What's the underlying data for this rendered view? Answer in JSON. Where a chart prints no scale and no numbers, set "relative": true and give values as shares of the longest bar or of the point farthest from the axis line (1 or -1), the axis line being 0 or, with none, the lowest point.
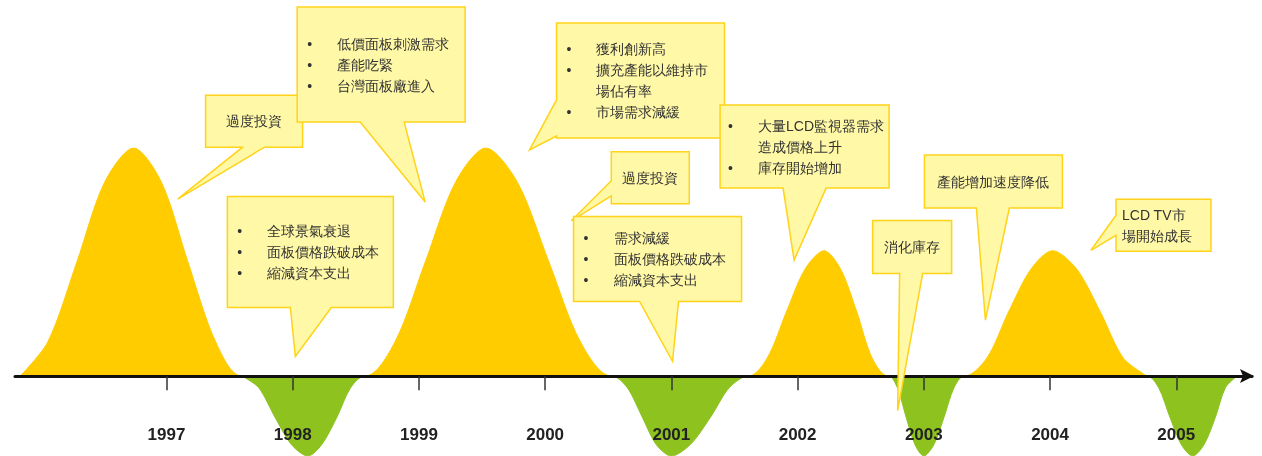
{
  "chart_data": {
    "type": "area",
    "relative": true,
    "marker": "none",
    "xlim": [
      1995.8,
      2005.6
    ],
    "xticks": [
      1997,
      1998,
      1999,
      2000,
      2001,
      2002,
      2003,
      2004,
      2005
    ],
    "series": [
      {
        "color": "#ffcc00",
        "x": [
          1995.84,
          1996.06,
          1996.29,
          1996.51,
          1996.74,
          1996.96,
          1997.17,
          1997.39,
          1997.6,
          1998.57,
          1998.81,
          1999.05,
          1999.29,
          1999.53,
          1999.78,
          2000.03,
          2000.28,
          2000.53,
          2001.61,
          2001.76,
          2001.91,
          2002.06,
          2002.21,
          2002.34,
          2002.47,
          2002.59,
          2002.72,
          2003.32,
          2003.5,
          2003.67,
          2003.85,
          2004.02,
          2004.21,
          2004.4,
          2004.58,
          2004.77
        ],
        "values": [
          0,
          0.15,
          0.5,
          0.85,
          1,
          0.85,
          0.5,
          0.15,
          0,
          0,
          0.15,
          0.5,
          0.85,
          1,
          0.85,
          0.5,
          0.15,
          0,
          0,
          0.08,
          0.28,
          0.47,
          0.55,
          0.47,
          0.28,
          0.08,
          0,
          0,
          0.08,
          0.28,
          0.47,
          0.55,
          0.47,
          0.28,
          0.08,
          0
        ]
      },
      {
        "color": "#8dc21f",
        "x": [
          1997.6,
          1997.73,
          1997.86,
          1997.99,
          1998.12,
          1998.23,
          1998.35,
          1998.46,
          1998.57,
          2000.53,
          2000.65,
          2000.77,
          2000.88,
          2001.0,
          2001.15,
          2001.31,
          2001.46,
          2001.61,
          2002.72,
          2002.79,
          2002.86,
          2002.93,
          2003.0,
          2003.08,
          2003.16,
          2003.24,
          2003.32,
          2004.77,
          2004.86,
          2004.95,
          2005.04,
          2005.13,
          2005.22,
          2005.31,
          2005.39,
          2005.48
        ],
        "values": [
          0,
          -0.05,
          -0.18,
          -0.3,
          -0.35,
          -0.3,
          -0.18,
          -0.05,
          0,
          0,
          -0.05,
          -0.18,
          -0.3,
          -0.35,
          -0.3,
          -0.18,
          -0.05,
          0,
          0,
          -0.05,
          -0.18,
          -0.3,
          -0.35,
          -0.3,
          -0.18,
          -0.05,
          0,
          0,
          -0.05,
          -0.18,
          -0.3,
          -0.35,
          -0.3,
          -0.18,
          -0.05,
          0
        ]
      }
    ],
    "annotations": [
      "過度投資",
      "• 低價面板刺激需求\n• 產能吃緊\n• 台灣面板廠進入",
      "• 全球景氣衰退\n• 面板價格跌破成本\n• 縮減資本支出",
      "• 獲利創新高\n• 擴充產能以維持市場佔有率\n• 市場需求減緩",
      "過度投資",
      "• 需求減緩\n• 面板價格跌破成本\n• 縮減資本支出",
      "• 大量LCD監視器需求造成價格上升\n• 庫存開始增加",
      "消化庫存",
      "產能增加速度降低",
      "LCD TV市場開始成長"
    ]
  }
}
